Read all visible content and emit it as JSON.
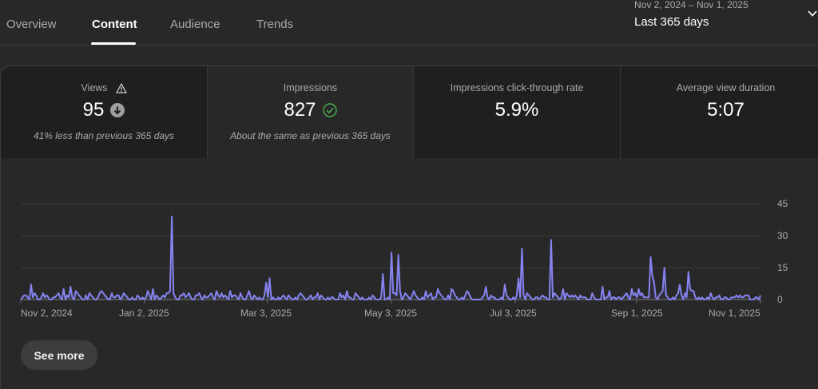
{
  "tabs": [
    {
      "label": "Overview",
      "active": false
    },
    {
      "label": "Content",
      "active": true
    },
    {
      "label": "Audience",
      "active": false
    },
    {
      "label": "Trends",
      "active": false
    }
  ],
  "date_range": {
    "range": "Nov 2, 2024 – Nov 1, 2025",
    "label": "Last 365 days",
    "icon": "chevron-down-icon"
  },
  "metrics": [
    {
      "label": "Views",
      "value": "95",
      "note": "41% less than previous 365 days",
      "label_icon": "warning-icon",
      "value_icon": "arrow-down-circle-icon",
      "selected": false
    },
    {
      "label": "Impressions",
      "value": "827",
      "note": "About the same as previous 365 days",
      "value_icon": "check-circle-icon",
      "selected": true
    },
    {
      "label": "Impressions click-through rate",
      "value": "5.9%",
      "note": "",
      "selected": false
    },
    {
      "label": "Average view duration",
      "value": "5:07",
      "note": "",
      "selected": false
    }
  ],
  "colors": {
    "line": "#8683f0",
    "check": "#4caf50",
    "down_badge": "#9e9e9e",
    "background": "#282828",
    "card_dark": "#1f1f1f"
  },
  "see_more_label": "See more",
  "chart_data": {
    "type": "line",
    "title": "Impressions",
    "xlabel": "",
    "ylabel": "",
    "x_tick_labels": [
      "Nov 2, 2024",
      "Jan 2, 2025",
      "Mar 3, 2025",
      "May 3, 2025",
      "Jul 3, 2025",
      "Sep 1, 2025",
      "Nov 1, 2025"
    ],
    "y_tick_labels": [
      "0",
      "15",
      "30",
      "45"
    ],
    "ylim": [
      0,
      45
    ],
    "grid": true,
    "y_axis_position": "right",
    "x_start": "Nov 2, 2024",
    "x_end": "Nov 1, 2025",
    "series": [
      {
        "name": "Impressions",
        "values": [
          0,
          1,
          2,
          2,
          1,
          0,
          7,
          1,
          3,
          2,
          0,
          0,
          1,
          3,
          1,
          2,
          1,
          0,
          0,
          1,
          1,
          2,
          3,
          1,
          0,
          5,
          0,
          2,
          1,
          6,
          1,
          0,
          4,
          3,
          2,
          1,
          0,
          0,
          2,
          0,
          3,
          2,
          1,
          0,
          0,
          1,
          3,
          4,
          3,
          2,
          1,
          0,
          0,
          3,
          1,
          1,
          2,
          2,
          0,
          1,
          3,
          2,
          1,
          0,
          0,
          1,
          0,
          0,
          2,
          1,
          0,
          1,
          0,
          1,
          4,
          2,
          0,
          5,
          0,
          2,
          1,
          0,
          1,
          2,
          1,
          3,
          3,
          4,
          39,
          3,
          1,
          0,
          0,
          2,
          2,
          3,
          1,
          2,
          3,
          1,
          0,
          0,
          2,
          2,
          3,
          1,
          0,
          2,
          1,
          1,
          2,
          3,
          1,
          0,
          4,
          2,
          1,
          3,
          1,
          2,
          1,
          0,
          4,
          1,
          2,
          2,
          1,
          0,
          3,
          1,
          0,
          0,
          2,
          4,
          1,
          0,
          2,
          1,
          0,
          1,
          0,
          0,
          2,
          8,
          1,
          10,
          0,
          1,
          0,
          0,
          1,
          0,
          1,
          2,
          1,
          0,
          2,
          1,
          0,
          0,
          1,
          0,
          2,
          3,
          2,
          1,
          0,
          0,
          1,
          2,
          0,
          1,
          1,
          3,
          0,
          2,
          1,
          0,
          0,
          1,
          0,
          1,
          1,
          0,
          0,
          0,
          3,
          1,
          2,
          0,
          4,
          1,
          1,
          0,
          0,
          3,
          2,
          1,
          0,
          1,
          0,
          0,
          0,
          1,
          0,
          2,
          1,
          0,
          0,
          0,
          1,
          12,
          0,
          0,
          1,
          0,
          22,
          3,
          3,
          2,
          21,
          4,
          0,
          1,
          3,
          2,
          1,
          0,
          2,
          4,
          2,
          1,
          0,
          0,
          1,
          0,
          4,
          1,
          2,
          3,
          0,
          1,
          1,
          5,
          3,
          2,
          1,
          0,
          0,
          2,
          0,
          5,
          4,
          2,
          1,
          0,
          0,
          1,
          0,
          2,
          4,
          3,
          1,
          0,
          0,
          0,
          0,
          0,
          0,
          1,
          2,
          6,
          1,
          0,
          2,
          1,
          1,
          0,
          0,
          0,
          1,
          0,
          7,
          2,
          1,
          0,
          0,
          1,
          0,
          2,
          10,
          1,
          24,
          2,
          0,
          3,
          2,
          1,
          0,
          0,
          1,
          1,
          0,
          1,
          2,
          1,
          1,
          0,
          0,
          28,
          1,
          3,
          2,
          1,
          0,
          1,
          5,
          0,
          3,
          2,
          1,
          2,
          1,
          2,
          1,
          0,
          2,
          1,
          1,
          1,
          0,
          0,
          0,
          3,
          1,
          0,
          0,
          0,
          0,
          6,
          0,
          1,
          1,
          4,
          0,
          1,
          1,
          0,
          1,
          1,
          0,
          1,
          2,
          3,
          1,
          0,
          5,
          2,
          3,
          1,
          5,
          2,
          3,
          1,
          1,
          1,
          1,
          20,
          11,
          8,
          1,
          0,
          2,
          3,
          4,
          15,
          2,
          1,
          0,
          0,
          1,
          0,
          2,
          3,
          7,
          2,
          0,
          3,
          1,
          13,
          5,
          4,
          4,
          1,
          0,
          1,
          0,
          1,
          0,
          0,
          1,
          0,
          3,
          1,
          0,
          1,
          1,
          2,
          0,
          0,
          1,
          1,
          0,
          0,
          1,
          1,
          1,
          2,
          1,
          2,
          1,
          1,
          2,
          2,
          2,
          0,
          0,
          0,
          1,
          1,
          0,
          2
        ]
      }
    ]
  }
}
